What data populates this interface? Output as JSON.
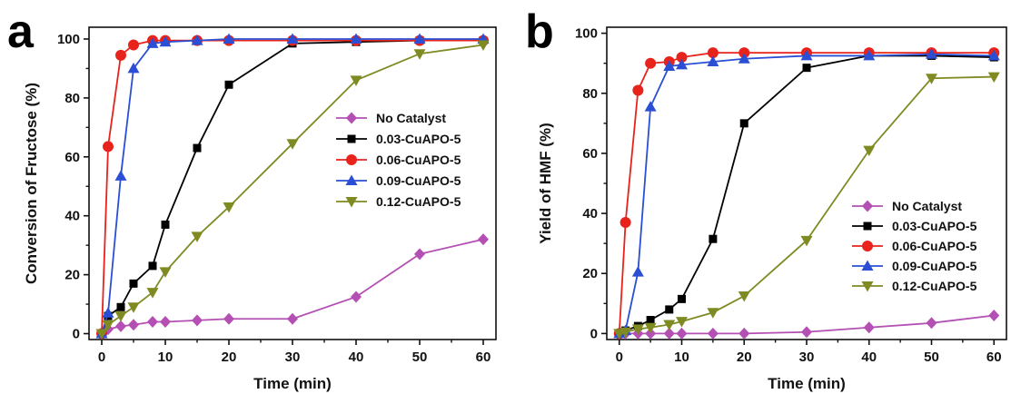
{
  "chart_data": [
    {
      "type": "line",
      "panel_label": "a",
      "xlabel": "Time (min)",
      "ylabel": "Conversion of Fructose (%)",
      "xlim": [
        -2,
        62
      ],
      "ylim": [
        -2,
        104
      ],
      "xticks": [
        0,
        10,
        20,
        30,
        40,
        50,
        60
      ],
      "yticks": [
        0,
        20,
        40,
        60,
        80,
        100
      ],
      "legend_position": "center-right",
      "series": [
        {
          "name": "No Catalyst",
          "color": "#b44fb4",
          "marker": "diamond",
          "x": [
            0,
            1,
            3,
            5,
            8,
            10,
            15,
            20,
            30,
            40,
            50,
            60
          ],
          "y": [
            0,
            1.5,
            2.5,
            3,
            4,
            4,
            4.5,
            5,
            5,
            12.5,
            27,
            32
          ]
        },
        {
          "name": "0.03-CuAPO-5",
          "color": "#000000",
          "marker": "square",
          "x": [
            0,
            1,
            3,
            5,
            8,
            10,
            15,
            20,
            30,
            40,
            50,
            60
          ],
          "y": [
            0,
            6,
            9,
            17,
            23,
            37,
            63,
            84.5,
            98.5,
            99,
            99.5,
            99.5
          ]
        },
        {
          "name": "0.06-CuAPO-5",
          "color": "#e8231c",
          "marker": "circle",
          "x": [
            0,
            1,
            3,
            5,
            8,
            10,
            15,
            20,
            30,
            40,
            50,
            60
          ],
          "y": [
            0,
            63.5,
            94.5,
            98,
            99.5,
            99.5,
            99.5,
            99.5,
            99.5,
            99.5,
            99.5,
            99.5
          ]
        },
        {
          "name": "0.09-CuAPO-5",
          "color": "#2a4fd4",
          "marker": "triangle",
          "x": [
            0,
            1,
            3,
            5,
            8,
            10,
            15,
            20,
            30,
            40,
            50,
            60
          ],
          "y": [
            0,
            7,
            53.5,
            90,
            98.5,
            99,
            99.5,
            100,
            100,
            100,
            100,
            100
          ]
        },
        {
          "name": "0.12-CuAPO-5",
          "color": "#808a22",
          "marker": "triangle-down",
          "x": [
            0,
            1,
            3,
            5,
            8,
            10,
            15,
            20,
            30,
            40,
            50,
            60
          ],
          "y": [
            0,
            3,
            6,
            9,
            14,
            21,
            33,
            43,
            64.5,
            86,
            95,
            98
          ]
        }
      ]
    },
    {
      "type": "line",
      "panel_label": "b",
      "xlabel": "Time (min)",
      "ylabel": "Yield of HMF (%)",
      "xlim": [
        -2,
        62
      ],
      "ylim": [
        -2,
        102
      ],
      "xticks": [
        0,
        10,
        20,
        30,
        40,
        50,
        60
      ],
      "yticks": [
        0,
        20,
        40,
        60,
        80,
        100
      ],
      "legend_position": "bottom-right",
      "series": [
        {
          "name": "No Catalyst",
          "color": "#b44fb4",
          "marker": "diamond",
          "x": [
            0,
            1,
            3,
            5,
            8,
            10,
            15,
            20,
            30,
            40,
            50,
            60
          ],
          "y": [
            0,
            0,
            0,
            0,
            0,
            0,
            0,
            0,
            0.5,
            2,
            3.5,
            6
          ]
        },
        {
          "name": "0.03-CuAPO-5",
          "color": "#000000",
          "marker": "square",
          "x": [
            0,
            1,
            3,
            5,
            8,
            10,
            15,
            20,
            30,
            40,
            50,
            60
          ],
          "y": [
            0,
            1,
            2.5,
            4.5,
            8,
            11.5,
            31.5,
            70,
            88.5,
            92.5,
            92.5,
            92
          ]
        },
        {
          "name": "0.06-CuAPO-5",
          "color": "#e8231c",
          "marker": "circle",
          "x": [
            0,
            1,
            3,
            5,
            8,
            10,
            15,
            20,
            30,
            40,
            50,
            60
          ],
          "y": [
            0,
            37,
            81,
            90,
            90.5,
            92,
            93.5,
            93.5,
            93.5,
            93.5,
            93.5,
            93.5
          ]
        },
        {
          "name": "0.09-CuAPO-5",
          "color": "#2a4fd4",
          "marker": "triangle",
          "x": [
            0,
            1,
            3,
            5,
            8,
            10,
            15,
            20,
            30,
            40,
            50,
            60
          ],
          "y": [
            0,
            1,
            20.5,
            75.5,
            89,
            89.5,
            90.5,
            91.5,
            92.5,
            92.5,
            93,
            92.5
          ]
        },
        {
          "name": "0.12-CuAPO-5",
          "color": "#808a22",
          "marker": "triangle-down",
          "x": [
            0,
            1,
            3,
            5,
            8,
            10,
            15,
            20,
            30,
            40,
            50,
            60
          ],
          "y": [
            0,
            0.5,
            1.5,
            2,
            3,
            4,
            7,
            12.5,
            31,
            61,
            85,
            85.5
          ]
        }
      ]
    }
  ]
}
